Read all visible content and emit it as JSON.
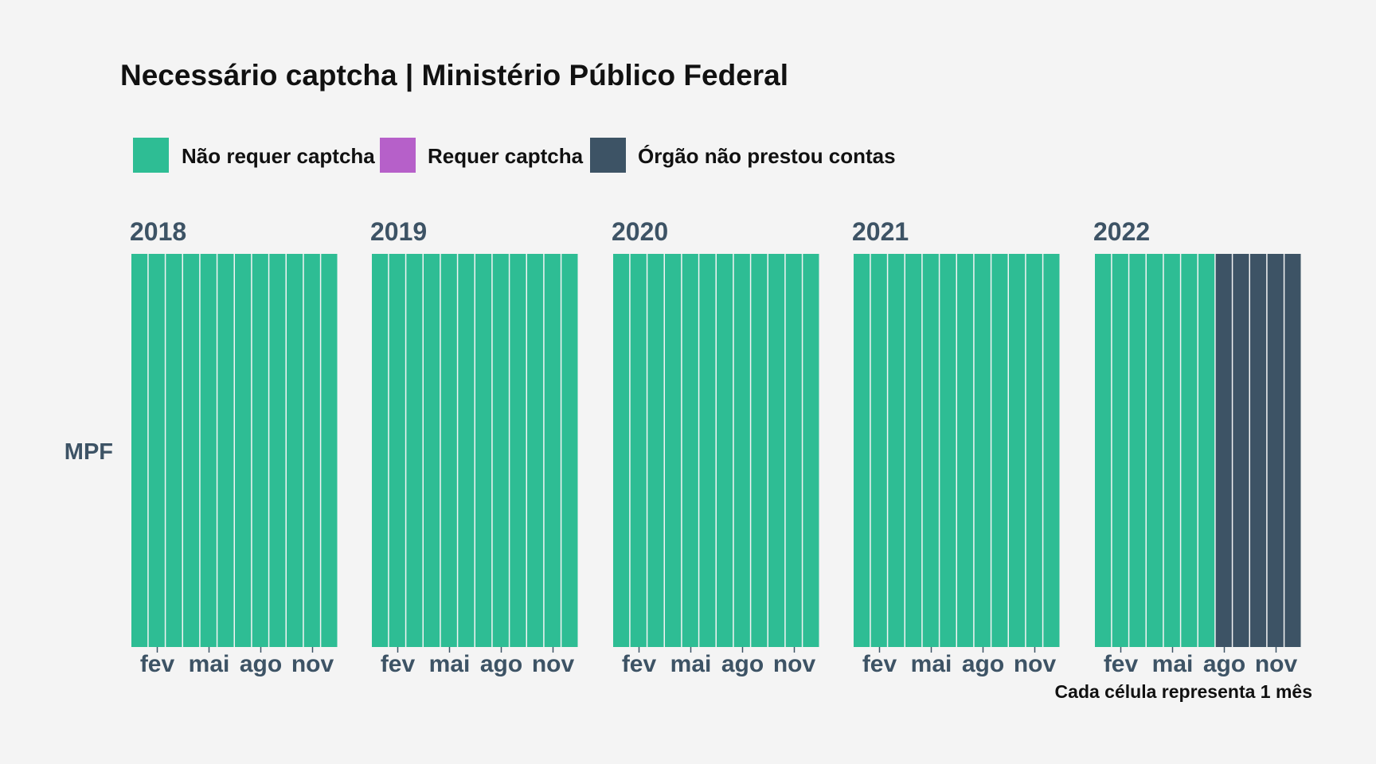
{
  "chart_data": {
    "type": "heatmap",
    "title": "Necessário captcha | Ministério Público Federal",
    "caption": "Cada célula representa 1 mês",
    "row_label": "MPF",
    "legend": [
      {
        "label": "Não requer captcha",
        "color": "#2ebd94"
      },
      {
        "label": "Requer captcha",
        "color": "#b660c9"
      },
      {
        "label": "Órgão não prestou contas",
        "color": "#3d5365"
      }
    ],
    "month_ticks": [
      {
        "month": 2,
        "label": "fev"
      },
      {
        "month": 5,
        "label": "mai"
      },
      {
        "month": 8,
        "label": "ago"
      },
      {
        "month": 11,
        "label": "nov"
      }
    ],
    "panels": [
      {
        "year": "2018",
        "values": [
          "Não requer captcha",
          "Não requer captcha",
          "Não requer captcha",
          "Não requer captcha",
          "Não requer captcha",
          "Não requer captcha",
          "Não requer captcha",
          "Não requer captcha",
          "Não requer captcha",
          "Não requer captcha",
          "Não requer captcha",
          "Não requer captcha"
        ]
      },
      {
        "year": "2019",
        "values": [
          "Não requer captcha",
          "Não requer captcha",
          "Não requer captcha",
          "Não requer captcha",
          "Não requer captcha",
          "Não requer captcha",
          "Não requer captcha",
          "Não requer captcha",
          "Não requer captcha",
          "Não requer captcha",
          "Não requer captcha",
          "Não requer captcha"
        ]
      },
      {
        "year": "2020",
        "values": [
          "Não requer captcha",
          "Não requer captcha",
          "Não requer captcha",
          "Não requer captcha",
          "Não requer captcha",
          "Não requer captcha",
          "Não requer captcha",
          "Não requer captcha",
          "Não requer captcha",
          "Não requer captcha",
          "Não requer captcha",
          "Não requer captcha"
        ]
      },
      {
        "year": "2021",
        "values": [
          "Não requer captcha",
          "Não requer captcha",
          "Não requer captcha",
          "Não requer captcha",
          "Não requer captcha",
          "Não requer captcha",
          "Não requer captcha",
          "Não requer captcha",
          "Não requer captcha",
          "Não requer captcha",
          "Não requer captcha",
          "Não requer captcha"
        ]
      },
      {
        "year": "2022",
        "values": [
          "Não requer captcha",
          "Não requer captcha",
          "Não requer captcha",
          "Não requer captcha",
          "Não requer captcha",
          "Não requer captcha",
          "Não requer captcha",
          "Órgão não prestou contas",
          "Órgão não prestou contas",
          "Órgão não prestou contas",
          "Órgão não prestou contas",
          "Órgão não prestou contas"
        ]
      }
    ]
  }
}
